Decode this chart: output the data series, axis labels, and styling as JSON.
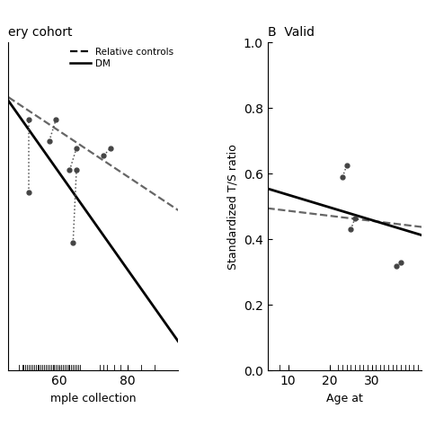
{
  "panel_A": {
    "title": "ery cohort",
    "xlabel": "mple collection",
    "xlim": [
      45,
      95
    ],
    "ylim": [
      0.05,
      0.5
    ],
    "xticks": [
      60,
      80
    ],
    "yticks": [],
    "dashed_line": {
      "x": [
        45,
        95
      ],
      "y": [
        0.425,
        0.27
      ]
    },
    "solid_line": {
      "x": [
        45,
        95
      ],
      "y": [
        0.42,
        0.09
      ]
    },
    "pairs": [
      {
        "x": [
          51,
          51
        ],
        "y": [
          0.295,
          0.395
        ]
      },
      {
        "x": [
          57,
          59
        ],
        "y": [
          0.365,
          0.395
        ]
      },
      {
        "x": [
          63,
          65
        ],
        "y": [
          0.325,
          0.355
        ]
      },
      {
        "x": [
          64,
          65
        ],
        "y": [
          0.225,
          0.325
        ]
      },
      {
        "x": [
          73,
          75
        ],
        "y": [
          0.345,
          0.355
        ]
      }
    ],
    "scatter_dots": [
      [
        51,
        0.295
      ],
      [
        51,
        0.395
      ],
      [
        57,
        0.365
      ],
      [
        59,
        0.395
      ],
      [
        63,
        0.325
      ],
      [
        65,
        0.355
      ],
      [
        64,
        0.225
      ],
      [
        65,
        0.325
      ],
      [
        73,
        0.345
      ],
      [
        75,
        0.355
      ]
    ],
    "rug_x": [
      48,
      49,
      49.5,
      50,
      50.5,
      51,
      51.5,
      52,
      52.5,
      53,
      53.5,
      54,
      54.5,
      55,
      55.5,
      56,
      56.5,
      57,
      57.5,
      58,
      58.5,
      59,
      59.5,
      60,
      60.5,
      61,
      61.5,
      62,
      62.5,
      63,
      63.5,
      64,
      64.5,
      65,
      65.5,
      66,
      72,
      73,
      74,
      76,
      78,
      80,
      84,
      88
    ]
  },
  "panel_B": {
    "title": "B  Valid",
    "xlabel": "Age at",
    "ylabel": "Standardized T/S ratio",
    "ylim": [
      0.0,
      1.0
    ],
    "xlim": [
      5,
      42
    ],
    "xticks": [
      10,
      20,
      30
    ],
    "yticks": [
      0.0,
      0.2,
      0.4,
      0.6,
      0.8,
      1.0
    ],
    "dashed_line": {
      "x": [
        5,
        42
      ],
      "y": [
        0.495,
        0.438
      ]
    },
    "solid_line": {
      "x": [
        5,
        42
      ],
      "y": [
        0.555,
        0.413
      ]
    },
    "pairs": [
      {
        "x": [
          23,
          24
        ],
        "y": [
          0.59,
          0.625
        ]
      },
      {
        "x": [
          25,
          26
        ],
        "y": [
          0.43,
          0.465
        ]
      },
      {
        "x": [
          36,
          37
        ],
        "y": [
          0.32,
          0.33
        ]
      }
    ],
    "scatter_dots": [
      [
        23,
        0.59
      ],
      [
        24,
        0.625
      ],
      [
        25,
        0.43
      ],
      [
        26,
        0.465
      ],
      [
        36,
        0.32
      ],
      [
        37,
        0.33
      ]
    ],
    "rug_x": [
      8,
      10,
      20,
      22,
      23,
      24,
      25,
      26,
      27,
      28,
      29,
      30,
      31,
      32,
      33,
      34,
      35,
      36,
      37,
      38,
      39,
      40,
      41
    ]
  },
  "legend": {
    "relative_controls_label": "Relative controls",
    "dm_label": "DM"
  },
  "colors": {
    "dot": "#444444",
    "line_solid": "#000000",
    "line_dashed": "#666666",
    "pair_dotted": "#555555"
  }
}
